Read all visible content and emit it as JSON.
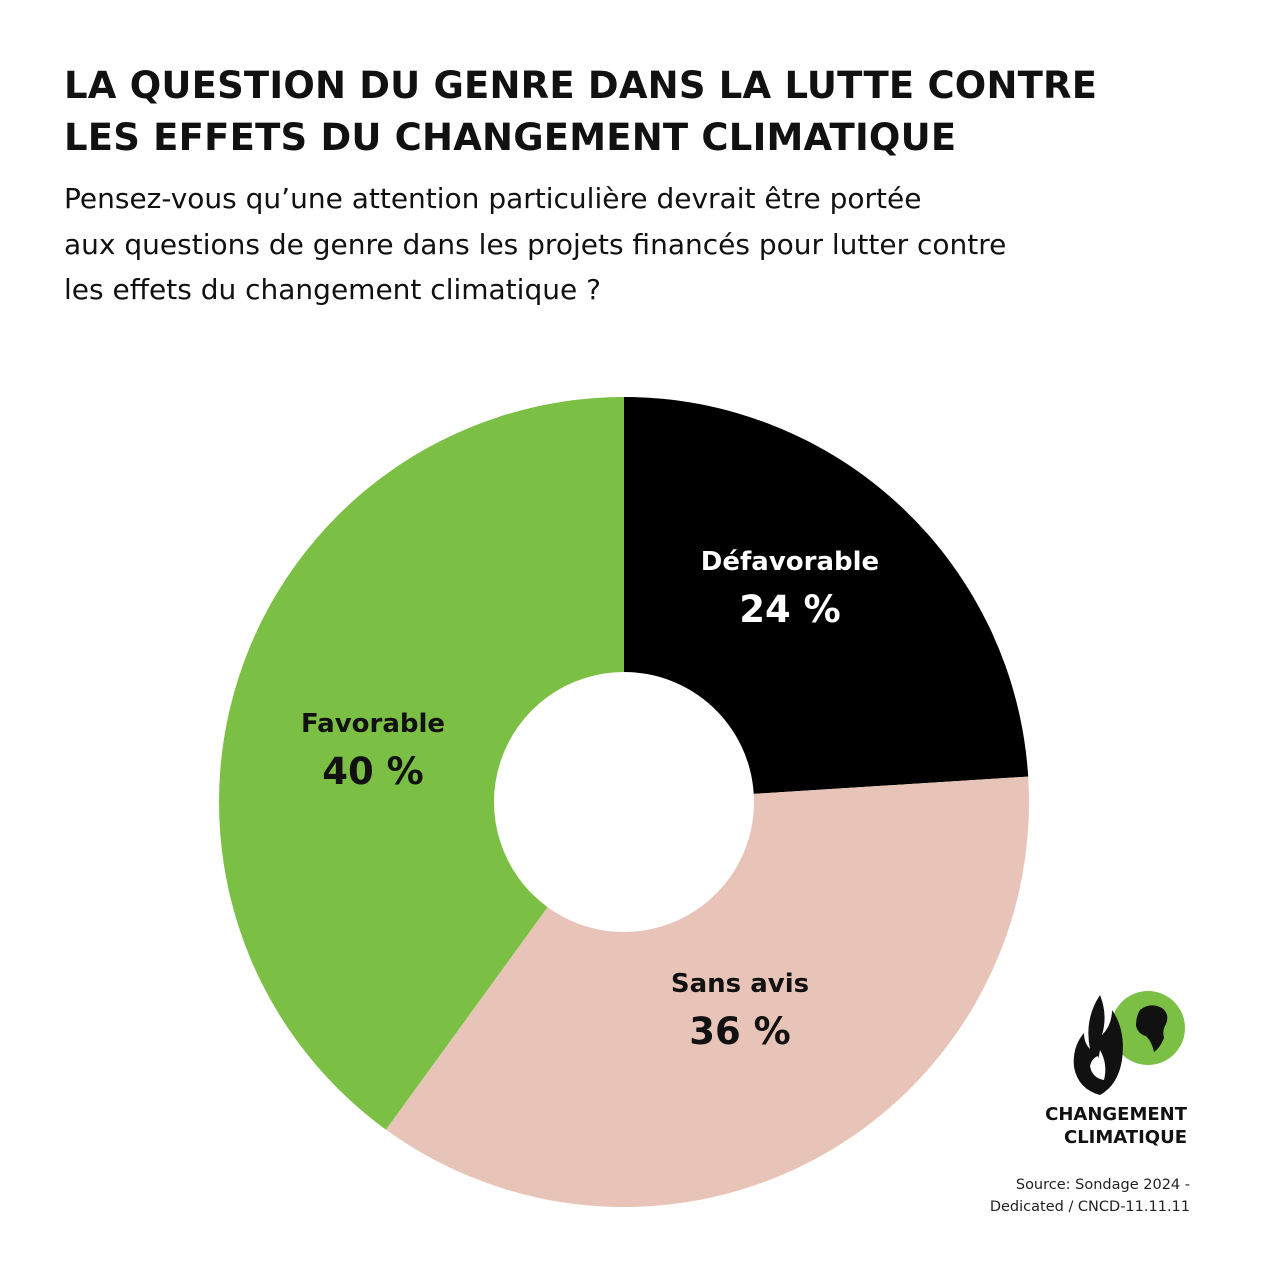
{
  "header": {
    "title_line1": "LA QUESTION DU GENRE DANS LA LUTTE CONTRE",
    "title_line2": "LES EFFETS DU CHANGEMENT CLIMATIQUE",
    "subtitle_line1": "Pensez-vous qu’une attention particulière devrait être portée",
    "subtitle_line2": "aux questions de genre dans les projets financés pour lutter contre",
    "subtitle_line3": "les effets du changement climatique ?"
  },
  "chart_data": {
    "type": "pie",
    "donut": true,
    "title": "LA QUESTION DU GENRE DANS LA LUTTE CONTRE LES EFFETS DU CHANGEMENT CLIMATIQUE",
    "categories": [
      "Défavorable",
      "Sans avis",
      "Favorable"
    ],
    "values": [
      24,
      36,
      40
    ],
    "value_labels": [
      "24 %",
      "36 %",
      "40 %"
    ],
    "colors": [
      "#000000",
      "#e8c4b8",
      "#7bbf45"
    ],
    "label_colors": [
      "#ffffff",
      "#111111",
      "#111111"
    ],
    "start": "top",
    "direction": "clockwise"
  },
  "logo": {
    "line1": "CHANGEMENT",
    "line2": "CLIMATIQUE",
    "globe_color": "#7bbf45"
  },
  "source": {
    "line1": "Source: Sondage 2024 -",
    "line2": "Dedicated /  CNCD-11.11.11"
  }
}
